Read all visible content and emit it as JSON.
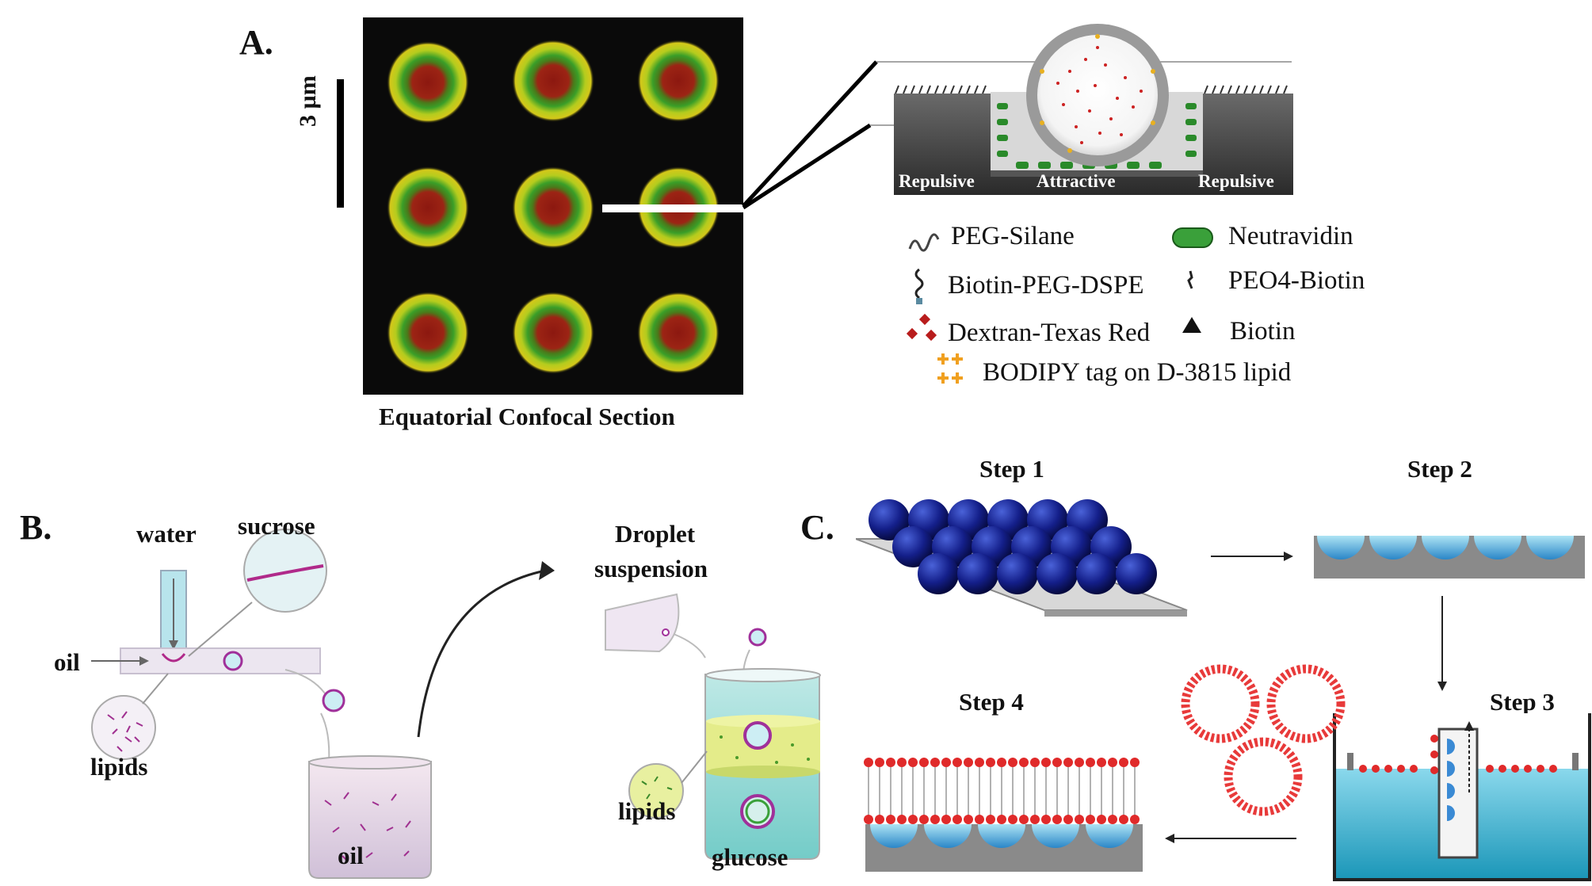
{
  "panel_a": {
    "label": "A.",
    "scale_bar": "3 µm",
    "caption": "Equatorial Confocal Section",
    "zones": {
      "left": "Repulsive",
      "center": "Attractive",
      "right": "Repulsive"
    },
    "legend": [
      {
        "icon": "peg-silane-icon",
        "text": "PEG-Silane"
      },
      {
        "icon": "neutravidin-icon",
        "text": "Neutravidin"
      },
      {
        "icon": "biotin-peg-dspe-icon",
        "text": "Biotin-PEG-DSPE"
      },
      {
        "icon": "peo4-biotin-icon",
        "text": "PEO4-Biotin"
      },
      {
        "icon": "dextran-texas-red-icon",
        "text": "Dextran-Texas Red"
      },
      {
        "icon": "biotin-icon",
        "text": "Biotin"
      },
      {
        "icon": "bodipy-icon",
        "text": "BODIPY tag on D-3815 lipid"
      }
    ],
    "colors": {
      "background": "#0a0a0a",
      "outer_ring": "#c8d21e",
      "inner_ring": "#4caa28",
      "core": "#9a1c14"
    }
  },
  "panel_b": {
    "label": "B.",
    "water": "water",
    "sucrose": "sucrose",
    "oil_inlet": "oil",
    "lipids_left": "lipids",
    "oil_beaker": "oil",
    "droplet_suspension_1": "Droplet",
    "droplet_suspension_2": "suspension",
    "lipids_right": "lipids",
    "glucose": "glucose"
  },
  "panel_c": {
    "label": "C.",
    "step1": "Step 1",
    "step2": "Step 2",
    "step3": "Step 3",
    "step4": "Step 4"
  }
}
